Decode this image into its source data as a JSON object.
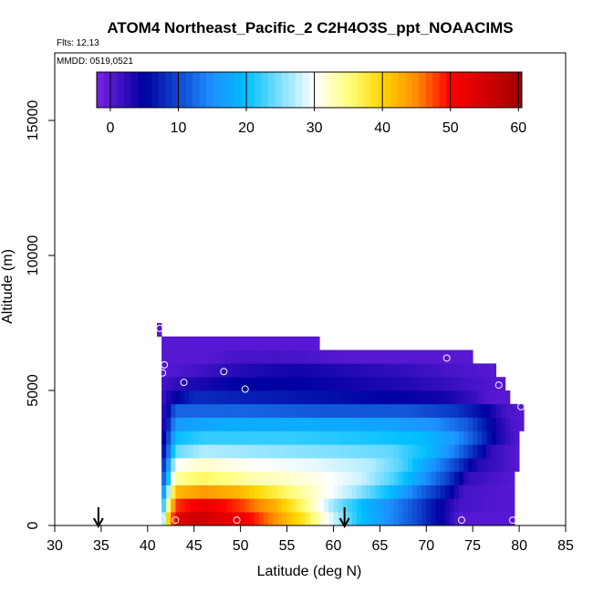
{
  "chart_data": {
    "type": "heatmap",
    "title": "ATOM4 Northeast_Pacific_2 C2H4O3S_ppt_NOAACIMS",
    "flights_label": "Flts: 12,13",
    "date_label": "MMDD: 0519,0521",
    "xlabel": "Latitude (deg N)",
    "ylabel": "Altitude (m)",
    "xlim": [
      30,
      85
    ],
    "ylim": [
      0,
      17500
    ],
    "xticks": [
      30,
      35,
      40,
      45,
      50,
      55,
      60,
      65,
      70,
      75,
      80,
      85
    ],
    "yticks": [
      0,
      5000,
      10000,
      15000
    ],
    "colorbar": {
      "range": [
        -2,
        60.5
      ],
      "ticks": [
        0,
        10,
        20,
        30,
        40,
        50,
        60
      ],
      "colors": [
        "#7a22e6",
        "#0000a0",
        "#1e90ff",
        "#00bfff",
        "#ffffff",
        "#ffff80",
        "#ffd700",
        "#ff8c00",
        "#ff0000",
        "#a00000"
      ],
      "stops": [
        -2,
        5,
        15,
        20,
        30,
        35,
        40,
        45,
        50,
        60.5
      ]
    },
    "altitude_bands": [
      {
        "ymin": 0,
        "ymax": 500,
        "xmin": 41.5,
        "xmax": 79.5,
        "profile": [
          [
            41.5,
            18
          ],
          [
            42.0,
            36
          ],
          [
            43.0,
            52
          ],
          [
            45.0,
            56
          ],
          [
            50.0,
            52
          ],
          [
            54.0,
            44
          ],
          [
            57.0,
            38
          ],
          [
            60.0,
            28
          ],
          [
            63.0,
            20
          ],
          [
            66.0,
            15
          ],
          [
            69.0,
            10
          ],
          [
            72.0,
            4
          ],
          [
            73.5,
            0
          ],
          [
            79.5,
            0
          ]
        ]
      },
      {
        "ymin": 500,
        "ymax": 1000,
        "xmin": 41.5,
        "xmax": 79.5,
        "profile": [
          [
            41.5,
            15
          ],
          [
            42.0,
            30
          ],
          [
            43.0,
            48
          ],
          [
            46.0,
            52
          ],
          [
            50.0,
            48
          ],
          [
            54.0,
            42
          ],
          [
            57.0,
            35
          ],
          [
            60.0,
            26
          ],
          [
            64.0,
            18
          ],
          [
            68.0,
            12
          ],
          [
            71.0,
            6
          ],
          [
            73.5,
            1
          ],
          [
            79.5,
            0
          ]
        ]
      },
      {
        "ymin": 1000,
        "ymax": 1500,
        "xmin": 41.5,
        "xmax": 79.5,
        "profile": [
          [
            41.5,
            12
          ],
          [
            42.0,
            22
          ],
          [
            43.0,
            42
          ],
          [
            46.0,
            44
          ],
          [
            50.0,
            42
          ],
          [
            54.0,
            37
          ],
          [
            58.0,
            32
          ],
          [
            62.0,
            27
          ],
          [
            66.0,
            20
          ],
          [
            69.0,
            13
          ],
          [
            72.0,
            7
          ],
          [
            74.0,
            1
          ],
          [
            79.5,
            0
          ]
        ]
      },
      {
        "ymin": 1500,
        "ymax": 2000,
        "xmin": 41.5,
        "xmax": 79.5,
        "profile": [
          [
            41.5,
            8
          ],
          [
            42.0,
            16
          ],
          [
            43.0,
            34
          ],
          [
            46.0,
            36
          ],
          [
            52.0,
            33
          ],
          [
            58.0,
            31
          ],
          [
            63.0,
            28
          ],
          [
            66.5,
            23
          ],
          [
            69.5,
            16
          ],
          [
            72.5,
            9
          ],
          [
            74.5,
            2
          ],
          [
            79.5,
            0
          ]
        ]
      },
      {
        "ymin": 2000,
        "ymax": 2500,
        "xmin": 41.5,
        "xmax": 80.0,
        "profile": [
          [
            41.5,
            6
          ],
          [
            42.0,
            12
          ],
          [
            43.0,
            30
          ],
          [
            46.0,
            32
          ],
          [
            52.0,
            30
          ],
          [
            58.0,
            29
          ],
          [
            64.0,
            27
          ],
          [
            67.5,
            23
          ],
          [
            70.5,
            16
          ],
          [
            73.5,
            9
          ],
          [
            75.5,
            3
          ],
          [
            80.0,
            0
          ]
        ]
      },
      {
        "ymin": 2500,
        "ymax": 3000,
        "xmin": 41.5,
        "xmax": 80.0,
        "profile": [
          [
            41.5,
            4
          ],
          [
            42.0,
            9
          ],
          [
            43.0,
            24
          ],
          [
            46.0,
            27
          ],
          [
            52.0,
            26
          ],
          [
            60.0,
            25
          ],
          [
            66.0,
            24
          ],
          [
            70.0,
            20
          ],
          [
            73.0,
            14
          ],
          [
            75.5,
            7
          ],
          [
            77.0,
            2
          ],
          [
            80.0,
            0
          ]
        ]
      },
      {
        "ymin": 3000,
        "ymax": 3500,
        "xmin": 41.5,
        "xmax": 80.0,
        "profile": [
          [
            41.5,
            3
          ],
          [
            42.0,
            7
          ],
          [
            43.0,
            20
          ],
          [
            46.0,
            22
          ],
          [
            55.0,
            22
          ],
          [
            63.0,
            21
          ],
          [
            69.0,
            20
          ],
          [
            73.0,
            16
          ],
          [
            75.5,
            10
          ],
          [
            77.5,
            4
          ],
          [
            80.0,
            0
          ]
        ]
      },
      {
        "ymin": 3500,
        "ymax": 4000,
        "xmin": 41.5,
        "xmax": 80.5,
        "profile": [
          [
            41.5,
            2
          ],
          [
            42.0,
            5
          ],
          [
            43.0,
            16
          ],
          [
            48.0,
            18
          ],
          [
            58.0,
            18
          ],
          [
            66.0,
            17
          ],
          [
            71.0,
            15
          ],
          [
            74.5,
            11
          ],
          [
            77.0,
            5
          ],
          [
            79.0,
            1
          ],
          [
            80.5,
            0
          ]
        ]
      },
      {
        "ymin": 4000,
        "ymax": 4500,
        "xmin": 41.5,
        "xmax": 80.5,
        "profile": [
          [
            41.5,
            2
          ],
          [
            42.0,
            4
          ],
          [
            43.0,
            12
          ],
          [
            50.0,
            12
          ],
          [
            60.0,
            11
          ],
          [
            68.0,
            11
          ],
          [
            73.0,
            9
          ],
          [
            76.5,
            5
          ],
          [
            78.5,
            1
          ],
          [
            80.5,
            0
          ]
        ]
      },
      {
        "ymin": 4500,
        "ymax": 5000,
        "xmin": 41.5,
        "xmax": 79.0,
        "profile": [
          [
            41.5,
            1
          ],
          [
            42.0,
            3
          ],
          [
            45.0,
            8
          ],
          [
            52.0,
            7
          ],
          [
            60.0,
            6
          ],
          [
            66.0,
            5
          ],
          [
            72.0,
            4
          ],
          [
            75.0,
            2
          ],
          [
            77.0,
            0
          ],
          [
            79.0,
            0
          ]
        ]
      },
      {
        "ymin": 5000,
        "ymax": 5500,
        "xmin": 41.5,
        "xmax": 78.5,
        "profile": [
          [
            41.5,
            1
          ],
          [
            44.0,
            3
          ],
          [
            50.0,
            5
          ],
          [
            56.0,
            5
          ],
          [
            62.0,
            4
          ],
          [
            68.0,
            3
          ],
          [
            72.0,
            2
          ],
          [
            75.0,
            1
          ],
          [
            78.5,
            0
          ]
        ]
      },
      {
        "ymin": 5500,
        "ymax": 6000,
        "xmin": 41.5,
        "xmax": 77.5,
        "profile": [
          [
            41.5,
            0
          ],
          [
            45.0,
            1
          ],
          [
            50.0,
            3
          ],
          [
            56.0,
            4
          ],
          [
            62.0,
            3
          ],
          [
            68.0,
            2
          ],
          [
            72.0,
            1
          ],
          [
            77.5,
            0
          ]
        ]
      },
      {
        "ymin": 6000,
        "ymax": 6500,
        "xmin": 41.5,
        "xmax": 75.0,
        "profile": [
          [
            41.5,
            0
          ],
          [
            46.0,
            0
          ],
          [
            50.0,
            1
          ],
          [
            56.0,
            1
          ],
          [
            62.0,
            0
          ],
          [
            75.0,
            0
          ]
        ]
      },
      {
        "ymin": 6500,
        "ymax": 7000,
        "xmin": 41.5,
        "xmax": 58.5,
        "profile": [
          [
            41.5,
            0
          ],
          [
            58.5,
            0
          ]
        ]
      },
      {
        "ymin": 7000,
        "ymax": 7500,
        "xmin": 41.0,
        "xmax": 41.5,
        "profile": [
          [
            41.0,
            0
          ],
          [
            41.5,
            0
          ]
        ]
      }
    ],
    "points": [
      {
        "x": 41.3,
        "y": 7300
      },
      {
        "x": 41.8,
        "y": 5950
      },
      {
        "x": 41.6,
        "y": 5650
      },
      {
        "x": 43.9,
        "y": 5300
      },
      {
        "x": 48.2,
        "y": 5700
      },
      {
        "x": 50.5,
        "y": 5050
      },
      {
        "x": 72.2,
        "y": 6200
      },
      {
        "x": 77.8,
        "y": 5200
      },
      {
        "x": 80.2,
        "y": 4400
      },
      {
        "x": 41.5,
        "y": 250
      },
      {
        "x": 43.0,
        "y": 200
      },
      {
        "x": 49.6,
        "y": 200
      },
      {
        "x": 73.8,
        "y": 200
      },
      {
        "x": 79.3,
        "y": 200
      }
    ],
    "arrows": [
      34.7,
      61.2
    ]
  }
}
